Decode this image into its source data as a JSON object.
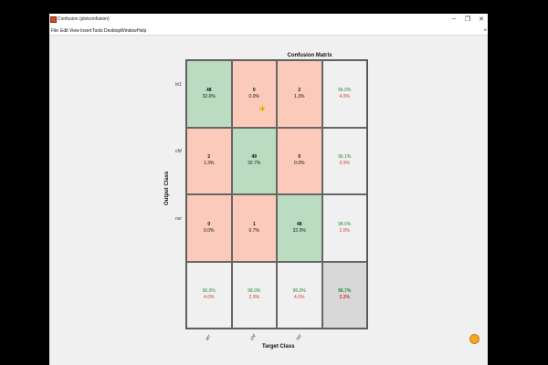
{
  "window": {
    "title": "Confusion (plotconfusion)",
    "minimize_glyph": "–",
    "maximize_glyph": "❐",
    "close_glyph": "✕"
  },
  "menubar": {
    "items": [
      "File",
      "Edit",
      "View",
      "Insert",
      "Tools",
      "Desktop",
      "Window",
      "Help"
    ],
    "overflow_glyph": "▸"
  },
  "matrix": {
    "title": "Confusion Matrix",
    "ylabel": "Output Class",
    "xlabel": "Target Class",
    "row_labels": [
      "tri1",
      "cfd",
      "nsr"
    ],
    "col_labels": [
      "arr",
      "chf",
      "nsr"
    ],
    "colors": {
      "correct": "#bcdcc1",
      "incorrect": "#fbcabb",
      "summary": "#f0f0f0",
      "total": "#d8d8d8",
      "good_text": "#2a8a3c",
      "bad_text": "#d13b2a"
    },
    "cells": [
      [
        {
          "count": "48",
          "pct": "32.0%"
        },
        {
          "count": "0",
          "pct": "0.0%"
        },
        {
          "count": "2",
          "pct": "1.3%"
        }
      ],
      [
        {
          "count": "2",
          "pct": "1.3%"
        },
        {
          "count": "49",
          "pct": "32.7%"
        },
        {
          "count": "0",
          "pct": "0.0%"
        }
      ],
      [
        {
          "count": "0",
          "pct": "0.0%"
        },
        {
          "count": "1",
          "pct": "0.7%"
        },
        {
          "count": "48",
          "pct": "32.0%"
        }
      ]
    ],
    "row_summary": [
      {
        "good": "96.0%",
        "bad": "4.0%"
      },
      {
        "good": "96.1%",
        "bad": "3.9%"
      },
      {
        "good": "98.0%",
        "bad": "2.0%"
      }
    ],
    "col_summary": [
      {
        "good": "96.0%",
        "bad": "4.0%"
      },
      {
        "good": "98.0%",
        "bad": "2.0%"
      },
      {
        "good": "96.0%",
        "bad": "4.0%"
      }
    ],
    "total": {
      "good": "96.7%",
      "bad": "3.3%"
    }
  }
}
